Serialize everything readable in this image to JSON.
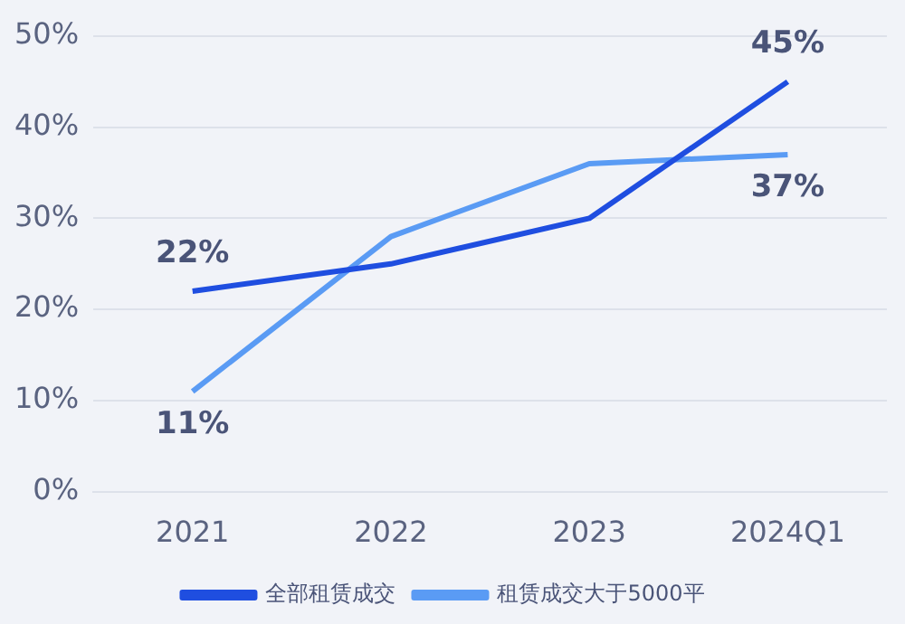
{
  "chart_data": {
    "type": "line",
    "categories": [
      "2021",
      "2022",
      "2023",
      "2024Q1"
    ],
    "series": [
      {
        "name": "全部租赁成交",
        "color": "#1f4ee0",
        "values": [
          22,
          25,
          30,
          45
        ],
        "value_labels": [
          "22%",
          null,
          null,
          "45%"
        ]
      },
      {
        "name": "租赁成交大于5000平",
        "color": "#5a9bf4",
        "values": [
          11,
          28,
          36,
          37
        ],
        "value_labels": [
          "11%",
          null,
          null,
          "37%"
        ]
      }
    ],
    "ylim": [
      0,
      50
    ],
    "yticks": [
      {
        "value": 0,
        "label": "0%"
      },
      {
        "value": 10,
        "label": "10%"
      },
      {
        "value": 20,
        "label": "20%"
      },
      {
        "value": 30,
        "label": "30%"
      },
      {
        "value": 40,
        "label": "40%"
      },
      {
        "value": 50,
        "label": "50%"
      }
    ],
    "grid": "y",
    "legend": "bottom",
    "marker": "none",
    "line_style": "solid"
  }
}
